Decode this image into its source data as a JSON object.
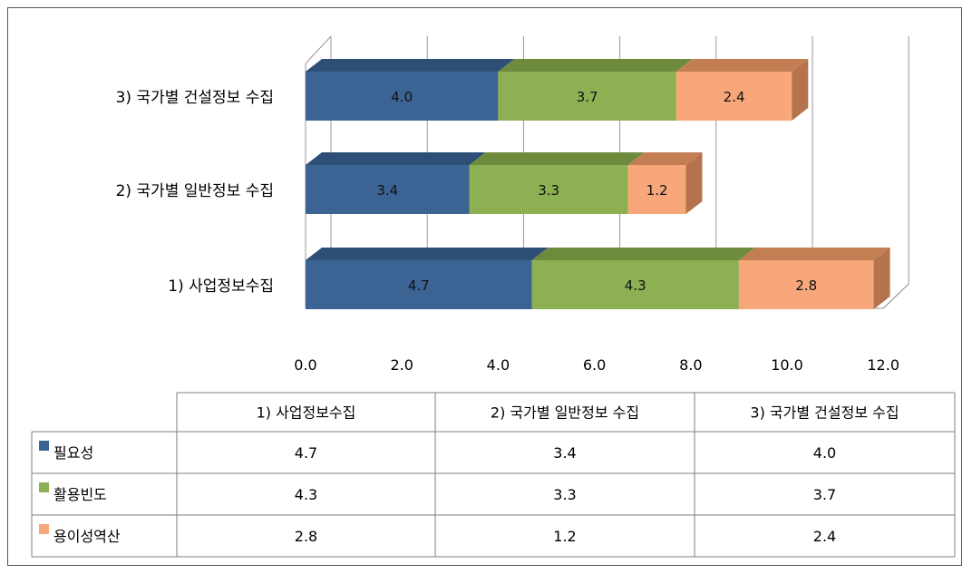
{
  "chart_data": {
    "type": "bar",
    "orientation": "horizontal",
    "stacked": true,
    "three_d": true,
    "categories": [
      "1) 사업정보수집",
      "2) 국가별 일반정보 수집",
      "3) 국가별 건설정보 수집"
    ],
    "series": [
      {
        "name": "필요성",
        "color": "#3B6494",
        "side_color": "#2F5077",
        "top_color": "#2D4E75",
        "values": [
          4.7,
          3.4,
          4.0
        ]
      },
      {
        "name": "활용빈도",
        "color": "#8CB052",
        "side_color": "#6F8D3F",
        "top_color": "#6E8B3D",
        "values": [
          4.3,
          3.3,
          3.7
        ]
      },
      {
        "name": "용이성역산",
        "color": "#F7A77A",
        "side_color": "#B4734C",
        "top_color": "#C47E53",
        "values": [
          2.8,
          1.2,
          2.4
        ]
      }
    ],
    "x_ticks": [
      "0.0",
      "2.0",
      "4.0",
      "6.0",
      "8.0",
      "10.0",
      "12.0"
    ],
    "xlim": [
      0,
      12
    ],
    "grid": true,
    "data_labels": [
      [
        "4.7",
        "3.4",
        "4.0"
      ],
      [
        "4.3",
        "3.3",
        "3.7"
      ],
      [
        "2.8",
        "1.2",
        "2.4"
      ]
    ],
    "table": {
      "headers": [
        "1) 사업정보수집",
        "2) 국가별 일반정보 수집",
        "3) 국가별 건설정보 수집"
      ],
      "rows": [
        {
          "label": "필요성",
          "values": [
            "4.7",
            "3.4",
            "4.0"
          ]
        },
        {
          "label": "활용빈도",
          "values": [
            "4.3",
            "3.3",
            "3.7"
          ]
        },
        {
          "label": "용이성역산",
          "values": [
            "2.8",
            "1.2",
            "2.4"
          ]
        }
      ]
    },
    "colors": {
      "grid": "#999999",
      "floor": "#d9d9d9",
      "table_border": "#7f7f7f"
    }
  }
}
